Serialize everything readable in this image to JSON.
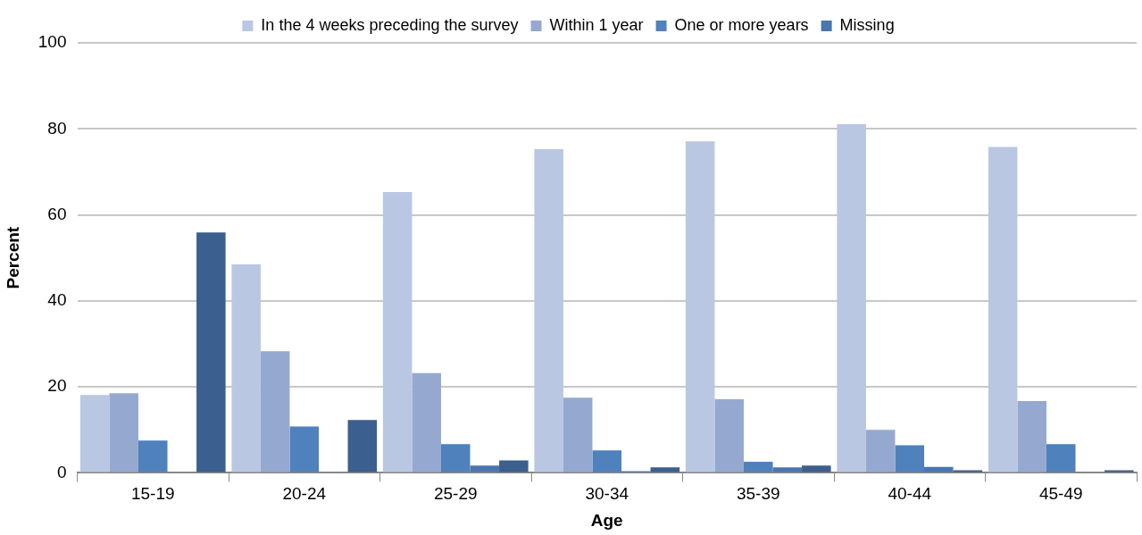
{
  "chart_data": {
    "type": "bar",
    "xlabel": "Age",
    "ylabel": "Percent",
    "categories": [
      "15-19",
      "20-24",
      "25-29",
      "30-34",
      "35-39",
      "40-44",
      "45-49"
    ],
    "series": [
      {
        "name": "In the 4 weeks preceding the survey",
        "color": "#b9c7e2",
        "values": [
          18.1,
          48.5,
          65.3,
          75.3,
          77.1,
          81.1,
          75.8
        ]
      },
      {
        "name": "Within 1 year",
        "color": "#95a9d0",
        "values": [
          18.5,
          28.3,
          23.2,
          17.5,
          17.1,
          10.0,
          16.7
        ]
      },
      {
        "name": "One or more years",
        "color": "#4f81bd",
        "values": [
          7.5,
          10.8,
          6.7,
          5.2,
          2.6,
          6.4,
          6.7
        ]
      },
      {
        "name": "Missing",
        "color": "#4a76b0",
        "values": [
          0,
          0,
          1.7,
          0.4,
          1.3,
          1.4,
          0
        ]
      },
      {
        "color": "#3b5f8e",
        "values": [
          55.9,
          12.3,
          2.9,
          1.3,
          1.7,
          0.6,
          0.6
        ]
      }
    ],
    "ylim": [
      0,
      100
    ],
    "yticks": [
      0,
      20,
      40,
      60,
      80,
      100
    ],
    "grid": "y",
    "legend": "top"
  }
}
